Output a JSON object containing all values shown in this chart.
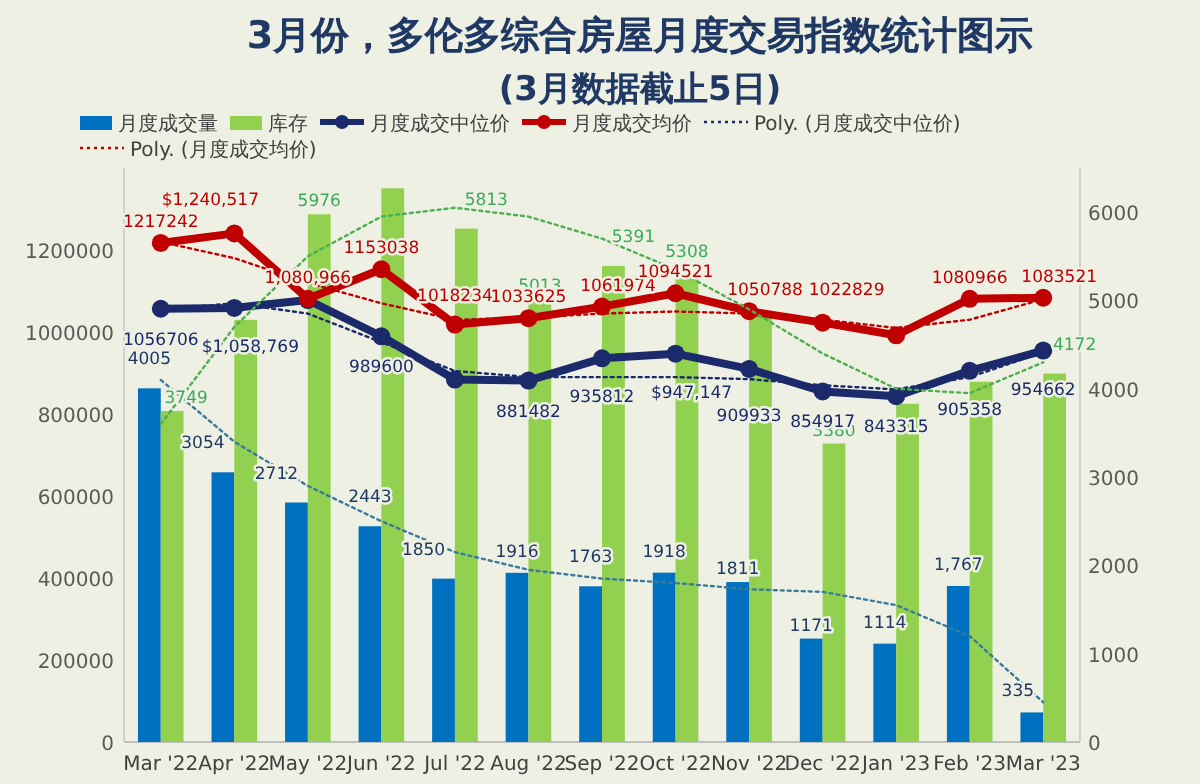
{
  "chart_data": {
    "type": "bar",
    "title": "3月份，多伦多综合房屋月度交易指数统计图示",
    "subtitle": "(3月数据截止5日)",
    "categories": [
      "Mar '22",
      "Apr '22",
      "May '22",
      "Jun '22",
      "Jul '22",
      "Aug '22",
      "Sep '22",
      "Oct '22",
      "Nov '22",
      "Dec '22",
      "Jan '23",
      "Feb '23",
      "Mar '23"
    ],
    "ylim": [
      0,
      1400000
    ],
    "yticks": [
      0,
      200000,
      400000,
      600000,
      800000,
      1000000,
      1200000
    ],
    "y2lim": [
      0,
      6500
    ],
    "y2ticks": [
      0,
      1000,
      2000,
      3000,
      4000,
      5000,
      6000
    ],
    "legend": "top",
    "series": [
      {
        "name": "月度成交量",
        "axis": "y2",
        "color": "#0070c0",
        "values": [
          4005,
          3054,
          2712,
          2443,
          1850,
          1916,
          1763,
          1918,
          1811,
          1171,
          1114,
          1767,
          335
        ],
        "value_labels": [
          "4005",
          "3054",
          "2712",
          "2443",
          "1850",
          "1916",
          "1763",
          "1918",
          "1811",
          "1171",
          "1114",
          "1,767",
          "335"
        ]
      },
      {
        "name": "库存",
        "axis": "y2",
        "color": "#92d050",
        "values": [
          3749,
          4780,
          5976,
          6270,
          5813,
          5013,
          5391,
          5308,
          4880,
          3380,
          3830,
          4080,
          4172
        ],
        "value_labels": [
          "3749",
          null,
          "5976",
          null,
          "5813",
          "5013",
          "5391",
          "5308",
          null,
          "3380",
          null,
          null,
          "4172"
        ]
      },
      {
        "name": "月度成交中位价",
        "type": "line",
        "color": "#1b2a6b",
        "marker": "circle",
        "values": [
          1056706,
          1058769,
          1078000,
          989600,
          884000,
          881482,
          935812,
          947147,
          909933,
          854917,
          843315,
          905358,
          954662
        ],
        "value_labels": [
          "1056706",
          "$1,058,769",
          null,
          "989600",
          null,
          "881482",
          "935812",
          "$947,147",
          "909933",
          "854917",
          "843315",
          "905358",
          "954662"
        ]
      },
      {
        "name": "月度成交均价",
        "type": "line",
        "color": "#c00000",
        "marker": "circle",
        "values": [
          1217242,
          1240517,
          1080966,
          1153038,
          1018234,
          1033625,
          1061974,
          1094521,
          1050788,
          1022829,
          992000,
          1080966,
          1083521
        ],
        "value_labels": [
          "1217242",
          "$1,240,517",
          "1,080,966",
          "1153038",
          "1018234",
          "1033625",
          "1061974",
          "1094521",
          "1050788",
          "1022829",
          null,
          "1080966",
          "1083521"
        ]
      },
      {
        "name": "Poly. (月度成交中位价)",
        "type": "line",
        "color": "#1b2a6b",
        "line_style": "dotted",
        "values": [
          1055000,
          1070000,
          1045000,
          975000,
          905000,
          890000,
          890000,
          890000,
          885000,
          870000,
          860000,
          890000,
          950000
        ]
      },
      {
        "name": "Poly. (月度成交均价)",
        "type": "line",
        "color": "#c00000",
        "line_style": "dotted",
        "values": [
          1220000,
          1180000,
          1120000,
          1070000,
          1030000,
          1035000,
          1045000,
          1050000,
          1045000,
          1030000,
          1010000,
          1030000,
          1080000
        ]
      },
      {
        "type": "line",
        "axis": "y2",
        "color": "#3a7a9a",
        "line_style": "dotted",
        "values": [
          4100,
          3400,
          2900,
          2500,
          2150,
          1950,
          1850,
          1800,
          1730,
          1700,
          1550,
          1200,
          450
        ]
      },
      {
        "type": "line",
        "axis": "y2",
        "color": "#4caf50",
        "line_style": "dotted",
        "values": [
          3600,
          4700,
          5500,
          5950,
          6050,
          5950,
          5700,
          5350,
          4900,
          4400,
          4000,
          3950,
          4300
        ]
      }
    ]
  }
}
